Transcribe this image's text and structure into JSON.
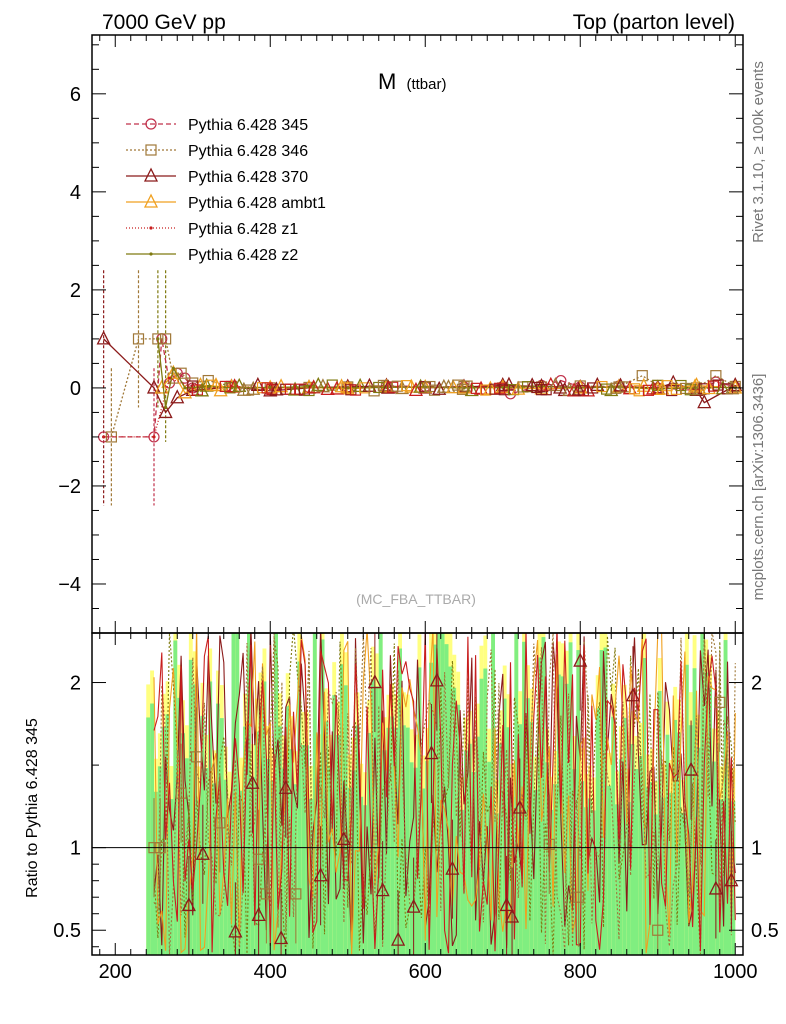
{
  "header": {
    "left": "7000 GeV pp",
    "right": "Top (parton level)"
  },
  "side": {
    "rivet": "Rivet 3.1.10, ≥ 100k events",
    "mcplots": "mcplots.cern.ch [arXiv:1306.3436]"
  },
  "chart_data": {
    "type": "line",
    "title_main": "M",
    "title_sub": "(ttbar)",
    "watermark": "(MC_FBA_TTBAR)",
    "ratio_ylabel": "Ratio to Pythia 6.428 345",
    "xlim": [
      170,
      1010
    ],
    "ylim_main": [
      -5.0,
      7.2
    ],
    "ylim_ratio": [
      0.35,
      2.3
    ],
    "x_ticks": [
      200,
      400,
      600,
      800,
      1000
    ],
    "y_ticks_main": [
      -4,
      -2,
      0,
      2,
      4,
      6
    ],
    "y_ticks_ratio": [
      0.5,
      1,
      2
    ],
    "colors": {
      "p345": "#c0304a",
      "p346": "#a07838",
      "p370": "#8b1a1a",
      "ambt1": "#f0a020",
      "z1": "#c81e1e",
      "z2": "#7f7a10",
      "band_yellow": "#ffff80",
      "band_green": "#80ee80"
    },
    "series": [
      {
        "name": "Pythia 6.428 345",
        "marker": "circle",
        "dash": "5,3",
        "color": "#c0304a",
        "x": [
          185,
          250,
          260,
          270,
          280,
          290,
          300,
          350,
          400,
          450,
          500,
          550,
          600,
          650,
          700,
          710,
          750,
          775,
          800,
          850,
          900,
          950,
          975,
          1000
        ],
        "y": [
          -1.0,
          -1.0,
          1.0,
          0.1,
          0.3,
          0.2,
          0.0,
          0.02,
          -0.03,
          0.01,
          0.02,
          0.04,
          0.03,
          0.02,
          0.03,
          -0.12,
          0.05,
          0.15,
          0.02,
          0.04,
          0.0,
          -0.05,
          0.12,
          0.02
        ]
      },
      {
        "name": "Pythia 6.428 346",
        "marker": "square",
        "dash": "2,2",
        "color": "#a07838",
        "x": [
          195,
          230,
          255,
          265,
          275,
          285,
          300,
          320,
          350,
          400,
          450,
          500,
          550,
          600,
          650,
          700,
          750,
          800,
          850,
          880,
          900,
          950,
          975,
          1000
        ],
        "y": [
          -1.0,
          1.0,
          1.0,
          1.0,
          0.2,
          0.3,
          0.1,
          0.15,
          0.03,
          0.0,
          0.01,
          0.02,
          0.02,
          0.01,
          0.03,
          0.0,
          0.02,
          0.04,
          0.02,
          0.25,
          0.05,
          0.0,
          0.25,
          0.03
        ]
      },
      {
        "name": "Pythia 6.428 370",
        "marker": "triangle",
        "dash": "",
        "color": "#8b1a1a",
        "x": [
          185,
          250,
          265,
          280,
          300,
          350,
          400,
          450,
          500,
          550,
          600,
          650,
          700,
          750,
          800,
          850,
          900,
          920,
          950,
          960,
          1000
        ],
        "y": [
          1.0,
          0.0,
          -0.5,
          -0.2,
          -0.05,
          0.02,
          -0.06,
          0.0,
          0.02,
          0.04,
          0.0,
          0.02,
          0.05,
          0.03,
          0.01,
          0.02,
          0.0,
          0.1,
          -0.05,
          -0.3,
          0.05
        ]
      },
      {
        "name": "Pythia 6.428 ambt1",
        "marker": "triangle",
        "dash": "",
        "color": "#f0a020",
        "x": [
          260,
          275,
          290,
          310,
          350,
          400,
          450,
          500,
          550,
          600,
          650,
          700,
          750,
          800,
          850,
          900,
          950,
          1000
        ],
        "y": [
          0.0,
          0.3,
          -0.1,
          0.05,
          0.02,
          0.0,
          0.01,
          -0.02,
          0.02,
          0.01,
          0.0,
          0.01,
          -0.02,
          0.0,
          0.02,
          -0.03,
          0.05,
          0.0
        ]
      },
      {
        "name": "Pythia 6.428 z1",
        "marker": "dot",
        "dash": "1,2",
        "color": "#c81e1e",
        "x": [
          185,
          250,
          270,
          300,
          350,
          400,
          450,
          500,
          550,
          600,
          650,
          700,
          750,
          800,
          850,
          900,
          950,
          1000
        ],
        "y": [
          -1.0,
          -1.0,
          0.2,
          0.0,
          0.03,
          0.0,
          0.02,
          0.0,
          0.01,
          0.02,
          0.0,
          0.03,
          0.01,
          0.0,
          0.02,
          0.0,
          -0.02,
          0.03
        ]
      },
      {
        "name": "Pythia 6.428 z2",
        "marker": "dot",
        "dash": "",
        "color": "#7f7a10",
        "x": [
          255,
          265,
          275,
          290,
          320,
          350,
          400,
          450,
          500,
          550,
          600,
          650,
          700,
          750,
          800,
          850,
          900,
          950,
          1000
        ],
        "y": [
          1.0,
          -0.4,
          0.4,
          0.0,
          0.03,
          0.0,
          0.01,
          0.02,
          0.0,
          0.01,
          0.02,
          0.0,
          0.01,
          0.03,
          0.0,
          0.02,
          -0.02,
          0.0,
          0.01
        ]
      }
    ],
    "main_errors": [
      {
        "x": 185,
        "lo": -2.4,
        "hi": 2.4,
        "color": "#8b1a1a"
      },
      {
        "x": 195,
        "lo": -2.4,
        "hi": 0.4,
        "color": "#a07838"
      },
      {
        "x": 230,
        "lo": -0.4,
        "hi": 2.4,
        "color": "#a07838"
      },
      {
        "x": 250,
        "lo": -2.4,
        "hi": 0.4,
        "color": "#c0304a"
      },
      {
        "x": 255,
        "lo": -0.4,
        "hi": 2.4,
        "color": "#7f7a10"
      },
      {
        "x": 265,
        "lo": -1.1,
        "hi": 2.4,
        "color": "#7f7a10"
      }
    ],
    "ratio_points": [
      {
        "x": 250,
        "y": 1.0,
        "marker": "square",
        "color": "#a07838"
      },
      {
        "x": 258,
        "y": 1.0,
        "marker": "square",
        "color": "#a07838"
      },
      {
        "x": 285,
        "y": 1.33,
        "marker": "square",
        "color": "#a07838"
      },
      {
        "x": 305,
        "y": 1.55,
        "marker": "square",
        "color": "#a07838"
      },
      {
        "x": 335,
        "y": 1.15,
        "marker": "square",
        "color": "#a07838"
      },
      {
        "x": 395,
        "y": 0.72,
        "marker": "square",
        "color": "#a07838"
      },
      {
        "x": 433,
        "y": 0.72,
        "marker": "square",
        "color": "#a07838"
      },
      {
        "x": 385,
        "y": 0.93,
        "marker": "square",
        "color": "#a07838"
      },
      {
        "x": 760,
        "y": 1.02,
        "marker": "square",
        "color": "#a07838"
      },
      {
        "x": 798,
        "y": 0.7,
        "marker": "square",
        "color": "#a07838"
      },
      {
        "x": 900,
        "y": 0.5,
        "marker": "square",
        "color": "#a07838"
      },
      {
        "x": 980,
        "y": 1.88,
        "marker": "square",
        "color": "#a07838"
      },
      {
        "x": 295,
        "y": 0.65,
        "marker": "triangle",
        "color": "#8b1a1a"
      },
      {
        "x": 313,
        "y": 0.96,
        "marker": "triangle",
        "color": "#8b1a1a"
      },
      {
        "x": 355,
        "y": 0.49,
        "marker": "triangle",
        "color": "#8b1a1a"
      },
      {
        "x": 377,
        "y": 1.39,
        "marker": "triangle",
        "color": "#8b1a1a"
      },
      {
        "x": 385,
        "y": 0.59,
        "marker": "triangle",
        "color": "#8b1a1a"
      },
      {
        "x": 414,
        "y": 0.45,
        "marker": "triangle",
        "color": "#8b1a1a"
      },
      {
        "x": 420,
        "y": 1.36,
        "marker": "triangle",
        "color": "#8b1a1a"
      },
      {
        "x": 465,
        "y": 0.83,
        "marker": "triangle",
        "color": "#8b1a1a"
      },
      {
        "x": 495,
        "y": 1.05,
        "marker": "triangle",
        "color": "#8b1a1a"
      },
      {
        "x": 535,
        "y": 2.0,
        "marker": "triangle",
        "color": "#8b1a1a"
      },
      {
        "x": 545,
        "y": 0.74,
        "marker": "triangle",
        "color": "#8b1a1a"
      },
      {
        "x": 565,
        "y": 0.44,
        "marker": "triangle",
        "color": "#8b1a1a"
      },
      {
        "x": 585,
        "y": 0.64,
        "marker": "triangle",
        "color": "#8b1a1a"
      },
      {
        "x": 608,
        "y": 1.57,
        "marker": "triangle",
        "color": "#8b1a1a"
      },
      {
        "x": 615,
        "y": 2.01,
        "marker": "triangle",
        "color": "#8b1a1a"
      },
      {
        "x": 635,
        "y": 0.87,
        "marker": "triangle",
        "color": "#8b1a1a"
      },
      {
        "x": 705,
        "y": 0.65,
        "marker": "triangle",
        "color": "#8b1a1a"
      },
      {
        "x": 712,
        "y": 0.58,
        "marker": "triangle",
        "color": "#8b1a1a"
      },
      {
        "x": 722,
        "y": 1.24,
        "marker": "triangle",
        "color": "#8b1a1a"
      },
      {
        "x": 800,
        "y": 2.13,
        "marker": "triangle",
        "color": "#8b1a1a"
      },
      {
        "x": 868,
        "y": 1.92,
        "marker": "triangle",
        "color": "#8b1a1a"
      },
      {
        "x": 943,
        "y": 1.47,
        "marker": "triangle",
        "color": "#8b1a1a"
      },
      {
        "x": 975,
        "y": 0.75,
        "marker": "triangle",
        "color": "#8b1a1a"
      },
      {
        "x": 995,
        "y": 0.8,
        "marker": "triangle",
        "color": "#8b1a1a"
      }
    ],
    "ratio_line_colors": [
      "#8b1a1a",
      "#7f7a10",
      "#f0a020",
      "#a07838",
      "#c81e1e"
    ]
  }
}
